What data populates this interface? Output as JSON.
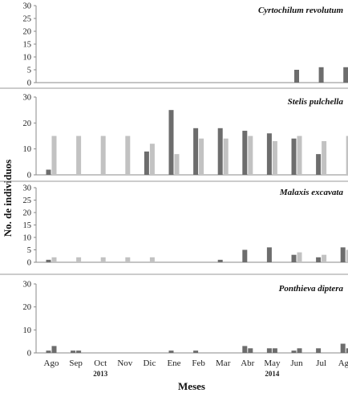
{
  "chart_data": {
    "type": "bar",
    "xlabel": "Meses",
    "ylabel": "No. de individuos",
    "categories": [
      "Ago",
      "Sep",
      "Oct",
      "Nov",
      "Dic",
      "Ene",
      "Feb",
      "Mar",
      "Abr",
      "May",
      "Jun",
      "Jul",
      "Ago"
    ],
    "years": [
      {
        "label": "2013",
        "under_category_index": 2
      },
      {
        "label": "2014",
        "under_category_index": 9
      }
    ],
    "colors": {
      "dark": "#6d6d6d",
      "light": "#c2c2c2",
      "axis": "#8a8a8a",
      "divider": "#999999"
    },
    "panels": [
      {
        "title": "Cyrtochilum revolutum",
        "ylim": [
          0,
          30
        ],
        "yticks": [
          0,
          5,
          10,
          15,
          20,
          25,
          30
        ],
        "series": [
          {
            "color": "dark",
            "values": [
              0,
              0,
              0,
              0,
              0,
              0,
              0,
              0,
              0,
              0,
              5,
              6,
              6
            ]
          }
        ]
      },
      {
        "title": "Stelis pulchella",
        "ylim": [
          0,
          30
        ],
        "yticks": [
          0,
          10,
          20,
          30
        ],
        "series": [
          {
            "color": "dark",
            "values": [
              2,
              0,
              0,
              0,
              9,
              25,
              18,
              18,
              17,
              16,
              14,
              8,
              0
            ]
          },
          {
            "color": "light",
            "values": [
              15,
              15,
              15,
              15,
              12,
              8,
              14,
              14,
              15,
              13,
              15,
              13,
              15
            ]
          }
        ]
      },
      {
        "title": "Malaxis excavata",
        "ylim": [
          0,
          30
        ],
        "yticks": [
          0,
          5,
          10,
          15,
          20,
          25,
          30
        ],
        "series": [
          {
            "color": "dark",
            "values": [
              1,
              0,
              0,
              0,
              0,
              0,
              0,
              1,
              5,
              6,
              3,
              2,
              6
            ]
          },
          {
            "color": "light",
            "values": [
              2,
              2,
              2,
              2,
              2,
              0,
              0,
              0,
              0,
              0,
              4,
              3,
              5
            ]
          }
        ]
      },
      {
        "title": "Ponthieva diptera",
        "ylim": [
          0,
          30
        ],
        "yticks": [
          0,
          10,
          20,
          30
        ],
        "series": [
          {
            "color": "dark",
            "values": [
              1,
              1,
              0,
              0,
              0,
              1,
              1,
              0,
              3,
              2,
              1,
              2,
              4
            ]
          },
          {
            "color": "dark",
            "values": [
              3,
              1,
              0,
              0,
              0,
              0,
              0,
              0,
              2,
              2,
              2,
              0,
              2
            ]
          }
        ]
      }
    ]
  }
}
